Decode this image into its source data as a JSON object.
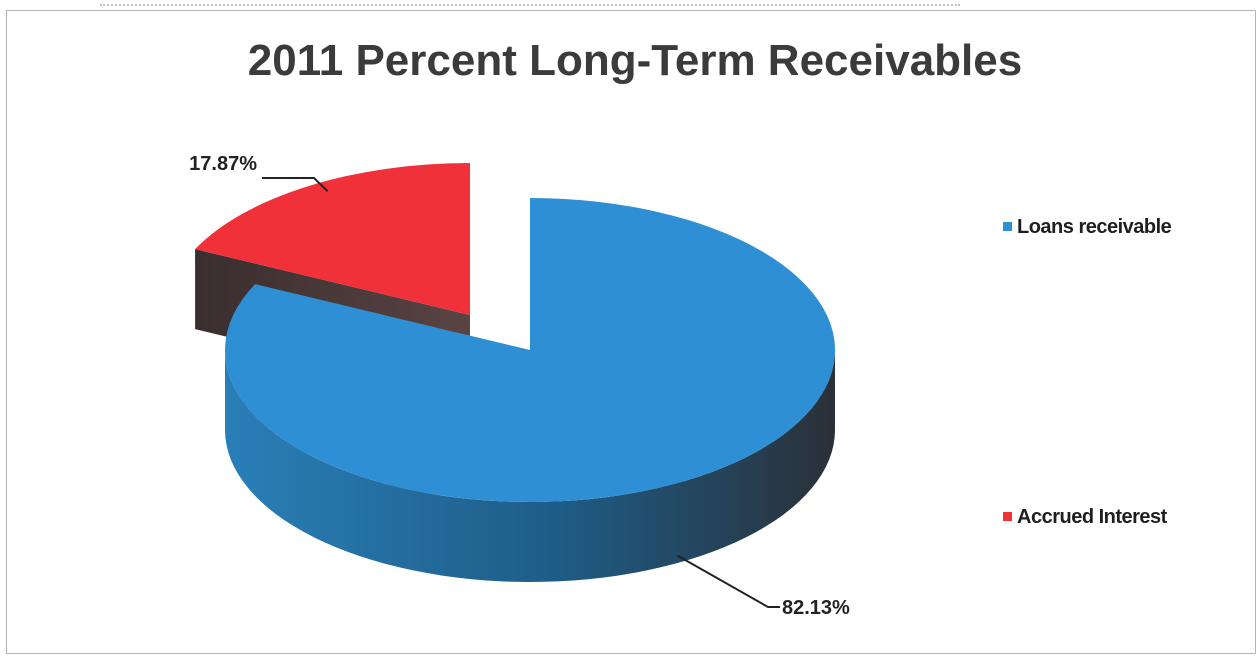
{
  "chart_data": {
    "type": "pie",
    "title": "2011 Percent Long-Term Receivables",
    "categories": [
      "Loans receivable",
      "Accrued Interest"
    ],
    "values": [
      82.13,
      17.87
    ],
    "value_labels": [
      "82.13%",
      "17.87%"
    ],
    "colors": {
      "loans_top": "#2e8fd4",
      "loans_side": "#1f5f86",
      "accrued_top": "#f0313a",
      "accrued_side": "#4a3a3a"
    },
    "style": "3d-exploded",
    "legend": {
      "position": "right",
      "entries": [
        "Loans receivable",
        "Accrued Interest"
      ]
    }
  }
}
